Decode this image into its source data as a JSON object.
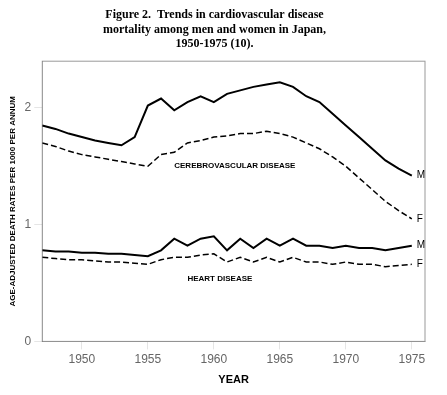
{
  "chart_data": {
    "type": "line",
    "title": [
      "Figure 2.  Trends in cardiovascular disease",
      "mortality among men and women in Japan,",
      "1950-1975 (10)."
    ],
    "x_label": "YEAR",
    "y_label": "AGE-ADJUSTED DEATH RATES PER 1000 PER ANNUM",
    "x": [
      1947,
      1948,
      1949,
      1950,
      1951,
      1952,
      1953,
      1954,
      1955,
      1956,
      1957,
      1958,
      1959,
      1960,
      1961,
      1962,
      1963,
      1964,
      1965,
      1966,
      1967,
      1968,
      1969,
      1970,
      1971,
      1972,
      1973,
      1974,
      1975
    ],
    "series": [
      {
        "name": "M",
        "color": "#000000",
        "line_style": "solid",
        "values": [
          1.85,
          1.82,
          1.78,
          1.75,
          1.72,
          1.7,
          1.68,
          1.75,
          2.02,
          2.08,
          1.98,
          2.05,
          2.1,
          2.05,
          2.12,
          2.15,
          2.18,
          2.2,
          2.22,
          2.18,
          2.1,
          2.05,
          1.95,
          1.85,
          1.75,
          1.65,
          1.55,
          1.48,
          1.42
        ]
      },
      {
        "name": "F",
        "color": "#000000",
        "line_style": "dashed",
        "values": [
          1.7,
          1.67,
          1.63,
          1.6,
          1.58,
          1.56,
          1.54,
          1.52,
          1.5,
          1.6,
          1.62,
          1.7,
          1.72,
          1.75,
          1.76,
          1.78,
          1.78,
          1.8,
          1.78,
          1.75,
          1.7,
          1.65,
          1.58,
          1.5,
          1.4,
          1.3,
          1.2,
          1.12,
          1.05
        ]
      },
      {
        "name": "M",
        "color": "#000000",
        "line_style": "solid",
        "values": [
          0.78,
          0.77,
          0.77,
          0.76,
          0.76,
          0.75,
          0.75,
          0.74,
          0.73,
          0.78,
          0.88,
          0.82,
          0.88,
          0.9,
          0.78,
          0.88,
          0.8,
          0.88,
          0.82,
          0.88,
          0.82,
          0.82,
          0.8,
          0.82,
          0.8,
          0.8,
          0.78,
          0.8,
          0.82
        ]
      },
      {
        "name": "F",
        "color": "#000000",
        "line_style": "dashed",
        "values": [
          0.72,
          0.71,
          0.7,
          0.7,
          0.69,
          0.68,
          0.68,
          0.67,
          0.66,
          0.7,
          0.72,
          0.72,
          0.74,
          0.75,
          0.68,
          0.72,
          0.68,
          0.72,
          0.68,
          0.72,
          0.68,
          0.68,
          0.66,
          0.68,
          0.66,
          0.66,
          0.64,
          0.65,
          0.66
        ]
      }
    ],
    "annotations": [
      {
        "text": "CEREBROVASCULAR DISEASE",
        "x": 1957.0,
        "y": 1.5
      },
      {
        "text": "HEART DISEASE",
        "x": 1958.0,
        "y": 0.54
      }
    ],
    "xlim": [
      1947,
      1976
    ],
    "xticks": [
      1950,
      1955,
      1960,
      1965,
      1970,
      1975
    ],
    "ylim": [
      0,
      2.4
    ],
    "yticks": [
      0,
      1,
      2
    ],
    "grid": false
  }
}
